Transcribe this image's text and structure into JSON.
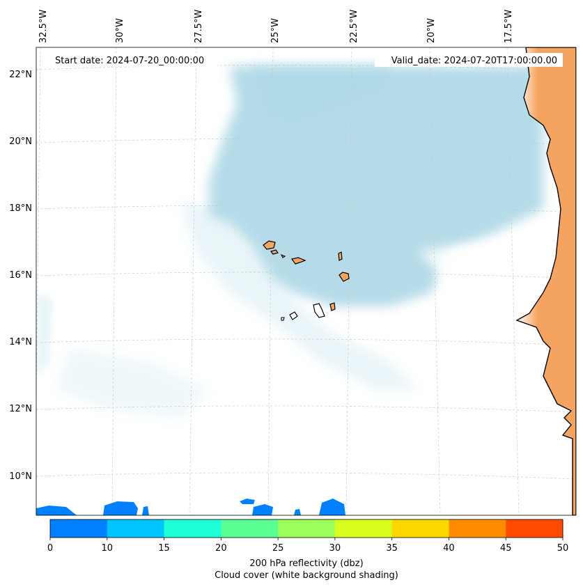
{
  "header": {
    "start_date": "Start date: 2024-07-20_00:00:00",
    "valid_date": "Valid_date: 2024-07-20T17:00:00.00"
  },
  "map": {
    "lon_labels": [
      "32.5°W",
      "30°W",
      "27.5°W",
      "25°W",
      "22.5°W",
      "20°W",
      "17.5°W"
    ],
    "lat_labels": [
      "22°N",
      "20°N",
      "18°N",
      "16°N",
      "14°N",
      "12°N",
      "10°N"
    ]
  },
  "colorbar": {
    "ticks": [
      "0",
      "10",
      "15",
      "20",
      "25",
      "30",
      "35",
      "40",
      "45",
      "50"
    ],
    "colors": [
      "#0080ff",
      "#00c4ff",
      "#1effd8",
      "#5cff94",
      "#9aff5a",
      "#d8ff1e",
      "#ffd800",
      "#ff8c00",
      "#ff4a00"
    ],
    "label_line1": "200 hPa reflectivity (dbz)",
    "label_line2": "Cloud cover (white background shading)"
  },
  "style": {
    "land_color": "#f4a460",
    "cloud_color": "#add8e6",
    "coast_color": "#000000"
  }
}
